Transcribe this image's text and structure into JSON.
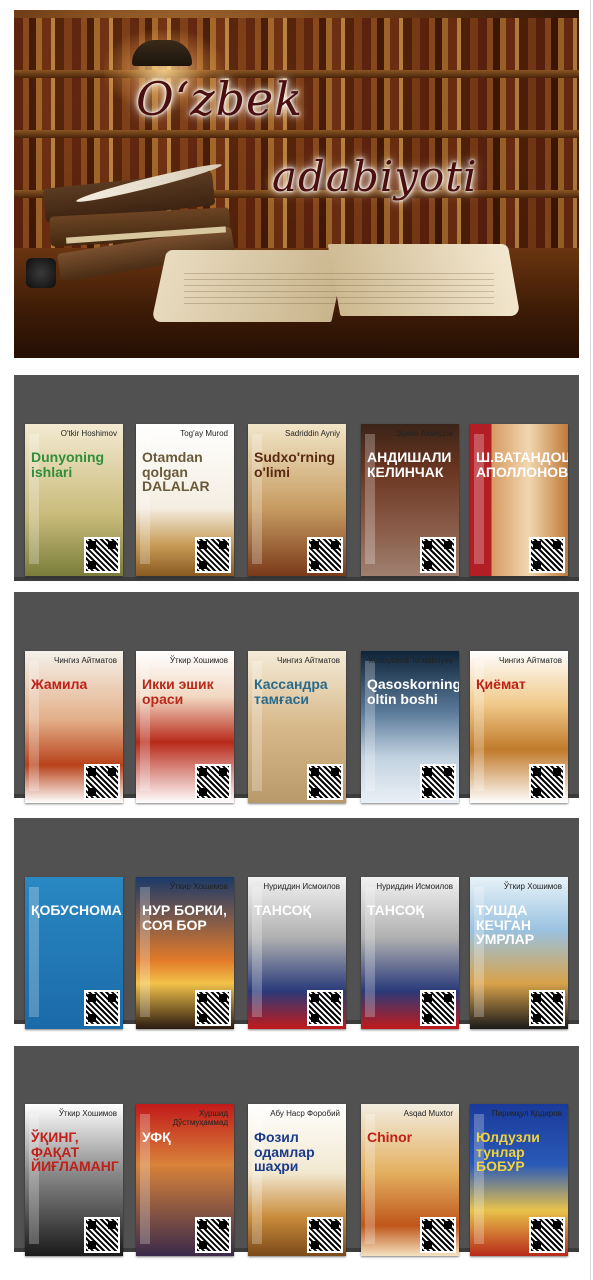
{
  "banner": {
    "title_line1": "O‘zbek",
    "title_line2": "adabiyoti"
  },
  "shelves": [
    {
      "books": [
        {
          "author": "O'tkir Hoshimov",
          "title": "Dunyoning ishlari",
          "bg": "linear-gradient(#f3ead2,#c9bb7a 60%,#7a7d3a)",
          "title_color": "#2f8f3a"
        },
        {
          "author": "Tog'ay Murod",
          "title": "Otamdan qolgan DALALAR",
          "bg": "linear-gradient(#ffffff,#f4eee2 55%,#c79a55 80%,#8a5a22)",
          "title_color": "#6a5a3a"
        },
        {
          "author": "Sadriddin Ayniy",
          "title": "Sudxo'rning o'limi",
          "bg": "linear-gradient(#f1e6c8,#c79c62 55%,#7a3a1a)",
          "title_color": "#5a2a12"
        },
        {
          "author": "Эркин Ахмедов",
          "title": "АНДИШАЛИ КЕЛИНЧАК",
          "bg": "linear-gradient(#3a2418,#6a3520 30%,#8a5d4a 70%,#a08070)",
          "title_color": "#ffffff"
        },
        {
          "author": "",
          "title": "Ш.ВАТАНДОШ АПОЛЛОНОВИЧ",
          "bg": "linear-gradient(90deg,#b21e24 0 22%,#d79a64 22%,#f1d7b0 60%,#c07a3a)",
          "title_color": "#ffffff"
        }
      ]
    },
    {
      "books": [
        {
          "author": "Чингиз Айтматов",
          "title": "Жамила",
          "bg": "linear-gradient(#f4f1ea,#e3b08a 45%,#b8421a 75%,#ffffff)",
          "title_color": "#c02018"
        },
        {
          "author": "Ўткир Хошимов",
          "title": "Икки эшик ораси",
          "bg": "linear-gradient(#ffffff,#f2d8c2 30%,#b82a1a 60%,#ffffff)",
          "title_color": "#b82a1a"
        },
        {
          "author": "Чингиз Айтматов",
          "title": "Кассандра тамғаси",
          "bg": "linear-gradient(#f4ecd8,#d7b88a 50%,#b89a6a)",
          "title_color": "#2a6a8a"
        },
        {
          "author": "Xudoyberdi To'xtaboyev",
          "title": "Qasoskorning oltin boshi",
          "bg": "linear-gradient(#0f2438,#5a7a9a 40%,#c2d2e0 70%,#eaf0f6)",
          "title_color": "#ffffff"
        },
        {
          "author": "Чингиз Айтматов",
          "title": "Қиёмат",
          "bg": "linear-gradient(#ffffff,#f0c98a 35%,#c07a2a 65%,#ffffff)",
          "title_color": "#c02018"
        }
      ]
    },
    {
      "books": [
        {
          "author": "",
          "title": "ҚОБУСНОМА",
          "bg": "linear-gradient(#2a88c2,#1a6aa8)",
          "title_color": "#ffffff"
        },
        {
          "author": "Ўткир Хошимов",
          "title": "НУР БОРКИ, СОЯ БОР",
          "bg": "linear-gradient(#1a3a6a,#e27a2a 55%,#f2c24a 70%,#2a1a10)",
          "title_color": "#ffffff"
        },
        {
          "author": "Нуриддин Исмоилов",
          "title": "ТАНСОҚ",
          "bg": "linear-gradient(#f2f2f2,#b0b0b0 40%,#2a3a7a 75%,#c21a1a)",
          "title_color": "#ffffff"
        },
        {
          "author": "Нуриддин Исмоилов",
          "title": "ТАНСОҚ",
          "bg": "linear-gradient(#f2f2f2,#b0b0b0 40%,#2a3a7a 75%,#c21a1a)",
          "title_color": "#ffffff"
        },
        {
          "author": "Ўткир Хошимов",
          "title": "ТУШДА КЕЧГАН УМРЛАР",
          "bg": "linear-gradient(#e8f2f8,#9ac2e0 35%,#d8a24a 70%,#1a1a1a)",
          "title_color": "#ffffff"
        }
      ]
    },
    {
      "books": [
        {
          "author": "Ўткир Хошимов",
          "title": "ЎҚИНГ, ФАҚАТ ЙИҒЛАМАНГ",
          "bg": "linear-gradient(#ffffff,#8a8a8a 45%,#1a1a1a)",
          "title_color": "#c02018"
        },
        {
          "author": "Хуршид Дўстмуҳаммад",
          "title": "УФҚ",
          "bg": "linear-gradient(#c21a1a,#d8823a 40%,#3a2a4a)",
          "title_color": "#ffffff"
        },
        {
          "author": "Абу Наср Форобий",
          "title": "Фозил одамлар шаҳри",
          "bg": "linear-gradient(#ffffff,#f2e8d0 45%,#c88a3a 75%,#7a4a1a)",
          "title_color": "#1a3a8a"
        },
        {
          "author": "Asqad Muxtor",
          "title": "Chinor",
          "bg": "linear-gradient(#f2ede0,#e3b060 45%,#c0561a 80%,#f4e2c0)",
          "title_color": "#c02018"
        },
        {
          "author": "Пиримқул Қодиров",
          "title": "Юлдузли тунлар БОБУР",
          "bg": "linear-gradient(#1a3a9a,#2a5ab8 40%,#e8c24a 70%,#b82a1a)",
          "title_color": "#f2d23a"
        }
      ]
    }
  ]
}
